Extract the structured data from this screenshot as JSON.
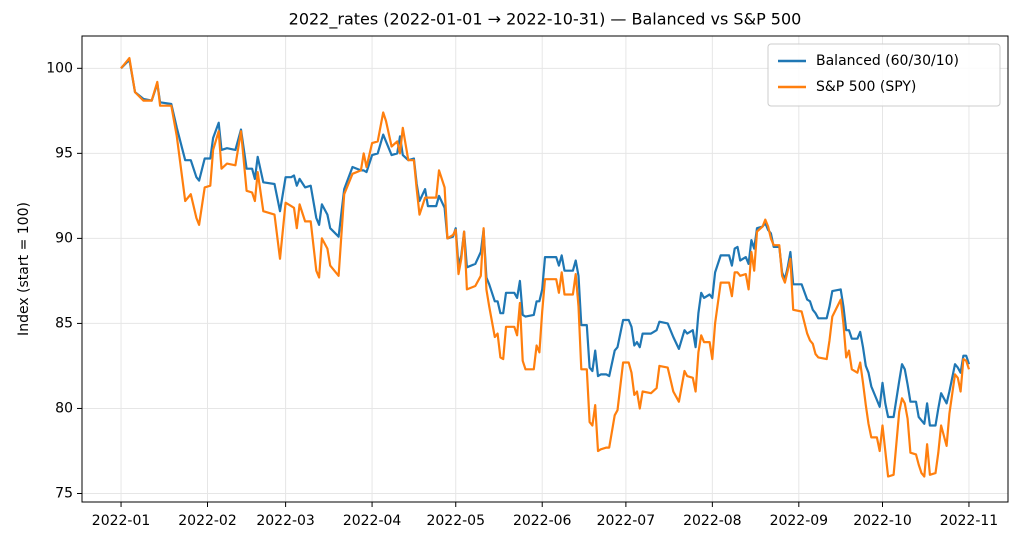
{
  "chart_data": {
    "type": "line",
    "title": "2022_rates (2022-01-01 → 2022-10-31) — Balanced vs S&P 500",
    "y_label": "Index (start = 100)",
    "x": [
      0,
      3,
      5,
      8,
      11,
      13,
      14,
      18,
      20,
      23,
      25,
      27,
      28,
      30,
      32,
      33,
      35,
      36,
      38,
      41,
      43,
      45,
      47,
      48,
      49,
      51,
      55,
      57,
      59,
      61,
      62,
      63,
      64,
      66,
      68,
      70,
      71,
      72,
      74,
      75,
      78,
      80,
      83,
      86,
      87,
      88,
      90,
      92,
      94,
      95,
      97,
      99,
      100,
      101,
      103,
      105,
      106,
      107,
      109,
      110,
      113,
      114,
      116,
      117,
      119,
      120,
      121,
      122,
      123,
      124,
      127,
      129,
      130,
      131,
      132,
      134,
      135,
      136,
      137,
      138,
      141,
      142,
      143,
      144,
      145,
      148,
      149,
      150,
      151,
      152,
      156,
      157,
      158,
      159,
      162,
      163,
      164,
      165,
      167,
      168,
      169,
      170,
      171,
      172,
      174,
      175,
      177,
      178,
      180,
      182,
      183,
      184,
      185,
      186,
      187,
      190,
      192,
      193,
      196,
      198,
      200,
      202,
      203,
      205,
      206,
      207,
      208,
      209,
      211,
      212,
      213,
      215,
      218,
      219,
      220,
      221,
      222,
      224,
      225,
      226,
      227,
      228,
      230,
      231,
      232,
      233,
      234,
      236,
      237,
      238,
      239,
      240,
      241,
      244,
      246,
      247,
      248,
      249,
      250,
      253,
      254,
      255,
      258,
      259,
      260,
      261,
      262,
      264,
      265,
      266,
      267,
      268,
      269,
      271,
      272,
      273,
      274,
      275,
      277,
      279,
      280,
      281,
      282,
      283,
      285,
      286,
      287,
      288,
      289,
      290,
      292,
      293,
      294,
      296,
      297,
      299,
      300,
      301,
      302,
      303,
      304
    ],
    "series": [
      {
        "name": "Balanced (60/30/10)",
        "color": "#1f77b4",
        "values": [
          100,
          100.5,
          98.6,
          98.2,
          98.1,
          99.1,
          98.0,
          97.9,
          96.5,
          94.6,
          94.6,
          93.6,
          93.4,
          94.7,
          94.7,
          95.9,
          96.8,
          95.2,
          95.3,
          95.2,
          96.4,
          94.1,
          94.1,
          93.5,
          94.8,
          93.3,
          93.2,
          91.6,
          93.6,
          93.6,
          93.7,
          93.1,
          93.5,
          93.0,
          93.1,
          91.2,
          90.8,
          92.0,
          91.4,
          90.6,
          90.1,
          92.9,
          94.2,
          94.0,
          94.0,
          93.9,
          94.9,
          95.0,
          96.1,
          95.7,
          94.9,
          95.0,
          96.0,
          94.9,
          94.6,
          94.7,
          93.2,
          92.2,
          92.9,
          91.9,
          91.9,
          92.5,
          91.8,
          90.0,
          90.1,
          90.6,
          88.4,
          89.0,
          90.4,
          88.3,
          88.5,
          89.2,
          90.5,
          87.7,
          87.3,
          86.3,
          86.3,
          85.6,
          85.6,
          86.8,
          86.8,
          86.5,
          87.5,
          85.5,
          85.4,
          85.5,
          86.3,
          86.3,
          87.0,
          88.9,
          88.9,
          88.4,
          89.0,
          88.1,
          88.1,
          88.7,
          87.8,
          84.9,
          84.9,
          82.4,
          82.2,
          83.4,
          81.9,
          82.0,
          82.0,
          81.9,
          83.4,
          83.6,
          85.2,
          85.2,
          84.8,
          83.7,
          83.9,
          83.6,
          84.4,
          84.4,
          84.6,
          85.1,
          85.0,
          84.2,
          83.5,
          84.6,
          84.4,
          84.6,
          83.6,
          85.6,
          86.8,
          86.5,
          86.7,
          86.5,
          88.0,
          89.0,
          89.0,
          88.4,
          89.4,
          89.5,
          88.7,
          88.9,
          88.5,
          89.9,
          89.4,
          90.6,
          90.7,
          90.9,
          90.5,
          90.3,
          89.5,
          89.5,
          88.0,
          87.6,
          88.3,
          89.2,
          87.3,
          87.3,
          86.4,
          86.3,
          85.8,
          85.6,
          85.3,
          85.3,
          86.0,
          86.9,
          87.0,
          86.0,
          84.6,
          84.6,
          84.1,
          84.1,
          84.5,
          83.6,
          82.5,
          82.1,
          81.3,
          80.5,
          80.1,
          81.5,
          80.3,
          79.5,
          79.5,
          81.6,
          82.6,
          82.3,
          81.4,
          80.4,
          80.4,
          79.5,
          79.3,
          79.1,
          80.3,
          79.0,
          79.0,
          80.0,
          80.9,
          80.3,
          81.0,
          82.6,
          82.4,
          82.1,
          83.1,
          83.1,
          82.6
        ]
      },
      {
        "name": "S&P 500 (SPY)",
        "color": "#ff7f0e",
        "values": [
          100,
          100.6,
          98.6,
          98.1,
          98.1,
          99.2,
          97.8,
          97.8,
          96.0,
          92.2,
          92.6,
          91.2,
          90.8,
          93.0,
          93.1,
          95.2,
          96.3,
          94.1,
          94.4,
          94.3,
          96.3,
          92.8,
          92.7,
          92.2,
          93.9,
          91.6,
          91.4,
          88.8,
          92.1,
          91.9,
          91.8,
          90.6,
          92.0,
          91.0,
          91.0,
          88.1,
          87.7,
          90.0,
          89.4,
          88.4,
          87.8,
          92.6,
          93.8,
          94.0,
          95.0,
          94.2,
          95.6,
          95.7,
          97.4,
          96.9,
          95.4,
          95.7,
          95.0,
          96.5,
          94.6,
          94.6,
          92.9,
          91.4,
          92.4,
          92.4,
          92.4,
          94.0,
          93.0,
          90.0,
          90.2,
          90.5,
          87.9,
          88.8,
          90.4,
          87.0,
          87.2,
          87.8,
          90.6,
          87.0,
          86.0,
          84.2,
          84.4,
          83.0,
          82.9,
          84.8,
          84.8,
          84.3,
          86.2,
          82.8,
          82.3,
          82.3,
          83.7,
          83.3,
          85.7,
          87.6,
          87.6,
          86.8,
          88.0,
          86.7,
          86.7,
          87.9,
          86.0,
          82.3,
          82.3,
          79.2,
          79.0,
          80.2,
          77.5,
          77.6,
          77.7,
          77.7,
          79.6,
          79.9,
          82.7,
          82.7,
          82.1,
          80.8,
          81.0,
          80.0,
          81.0,
          80.9,
          81.2,
          82.5,
          82.4,
          81.0,
          80.4,
          82.2,
          81.9,
          81.8,
          81.0,
          83.3,
          84.3,
          83.9,
          83.9,
          82.9,
          85.0,
          87.4,
          87.4,
          86.6,
          88.0,
          88.0,
          87.8,
          87.9,
          87.0,
          89.2,
          88.1,
          90.4,
          90.7,
          91.1,
          90.7,
          90.0,
          89.6,
          89.6,
          87.8,
          87.4,
          88.1,
          88.8,
          85.8,
          85.7,
          84.4,
          84.0,
          83.8,
          83.2,
          83.0,
          82.9,
          84.0,
          85.4,
          86.4,
          85.0,
          83.0,
          83.4,
          82.3,
          82.1,
          82.7,
          81.5,
          80.2,
          79.1,
          78.3,
          78.3,
          77.5,
          79.0,
          77.5,
          76.0,
          76.1,
          79.8,
          80.6,
          80.3,
          79.4,
          77.4,
          77.3,
          76.7,
          76.2,
          76.0,
          77.9,
          76.1,
          76.2,
          77.4,
          79.0,
          77.8,
          79.7,
          82.0,
          81.8,
          81.0,
          82.9,
          82.8,
          82.3
        ]
      }
    ],
    "xlim": [
      -14,
      318
    ],
    "xticks": [
      {
        "value": 0,
        "label": "2022-01"
      },
      {
        "value": 31,
        "label": "2022-02"
      },
      {
        "value": 59,
        "label": "2022-03"
      },
      {
        "value": 90,
        "label": "2022-04"
      },
      {
        "value": 120,
        "label": "2022-05"
      },
      {
        "value": 151,
        "label": "2022-06"
      },
      {
        "value": 181,
        "label": "2022-07"
      },
      {
        "value": 212,
        "label": "2022-08"
      },
      {
        "value": 243,
        "label": "2022-09"
      },
      {
        "value": 273,
        "label": "2022-10"
      },
      {
        "value": 304,
        "label": "2022-11"
      }
    ],
    "ylim": [
      74.5,
      101.9
    ],
    "yticks": [
      75,
      80,
      85,
      90,
      95,
      100
    ],
    "grid": true,
    "legend": "upper right"
  }
}
